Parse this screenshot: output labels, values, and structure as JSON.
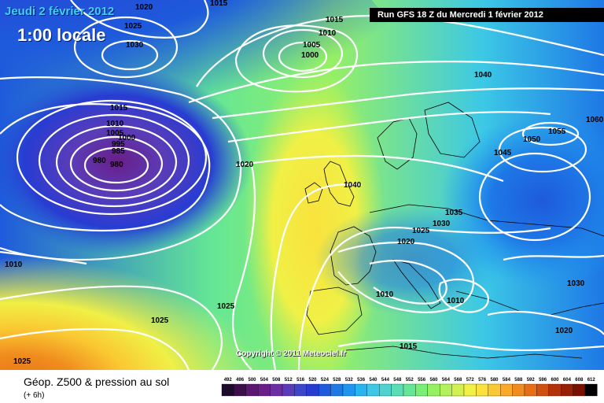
{
  "header": {
    "date_text": "Jeudi 2 février 2012",
    "time_text": "1:00 locale",
    "run_text": "Run GFS 18 Z du Mercredi 1 février 2012"
  },
  "copyright_text": "Copyright © 2011 Meteociel.fr",
  "legend": {
    "title": "Géop. Z500 & pression au sol",
    "subtitle": "(+ 6h)",
    "scale_values": [
      "492",
      "496",
      "500",
      "504",
      "508",
      "512",
      "516",
      "520",
      "524",
      "528",
      "532",
      "536",
      "540",
      "544",
      "548",
      "552",
      "556",
      "560",
      "564",
      "568",
      "572",
      "576",
      "580",
      "584",
      "588",
      "592",
      "596",
      "600",
      "604",
      "608",
      "612"
    ],
    "scale_colors": [
      "#1e0a2a",
      "#3a0f4a",
      "#5a1870",
      "#6a1e88",
      "#6c2ea0",
      "#5a3cb8",
      "#3c46c8",
      "#283cd2",
      "#1e5adc",
      "#1e78e6",
      "#1e96f0",
      "#28b4f0",
      "#3cc8e6",
      "#50d2d2",
      "#5adcb4",
      "#64e696",
      "#78f078",
      "#96f064",
      "#b4f05a",
      "#d2f050",
      "#f0f046",
      "#fae13c",
      "#fac832",
      "#faaa28",
      "#f08c1e",
      "#e66e14",
      "#d2500f",
      "#b4320a",
      "#962005",
      "#781000",
      "#000000"
    ]
  },
  "isobar_labels": [
    "1020",
    "1015",
    "1025",
    "1030",
    "1010",
    "1005",
    "1000",
    "995",
    "985",
    "980",
    "980",
    "1015",
    "1010",
    "1005",
    "1000",
    "1040",
    "1060",
    "1055",
    "1050",
    "1045",
    "1020",
    "1040",
    "1035",
    "1030",
    "1025",
    "1020",
    "1010",
    "1010",
    "1010",
    "1030",
    "1025",
    "1025",
    "1020",
    "1015",
    "1025",
    "1015"
  ],
  "colors": {
    "isobar": "#ffffff",
    "date_text": "#3fd0ff",
    "banner_bg": "#000000"
  }
}
